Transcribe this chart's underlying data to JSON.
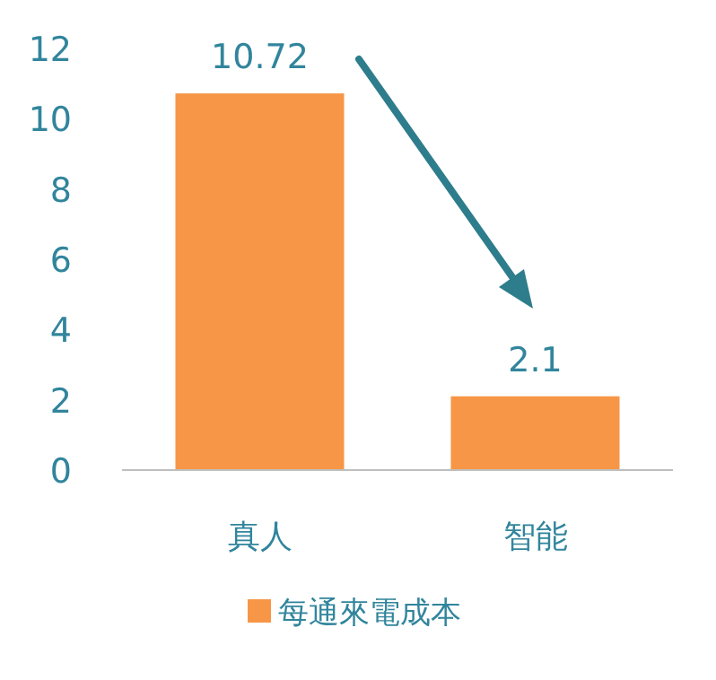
{
  "chart_data": {
    "type": "bar",
    "categories": [
      "真人",
      "智能"
    ],
    "series": [
      {
        "name": "每通來電成本",
        "color": "#f79646",
        "values": [
          10.72,
          2.1
        ]
      }
    ],
    "ylim": [
      0,
      12
    ],
    "yticks": [
      0,
      2,
      4,
      6,
      8,
      10,
      12
    ],
    "data_labels": true,
    "legend": "bottom",
    "grid": false
  }
}
